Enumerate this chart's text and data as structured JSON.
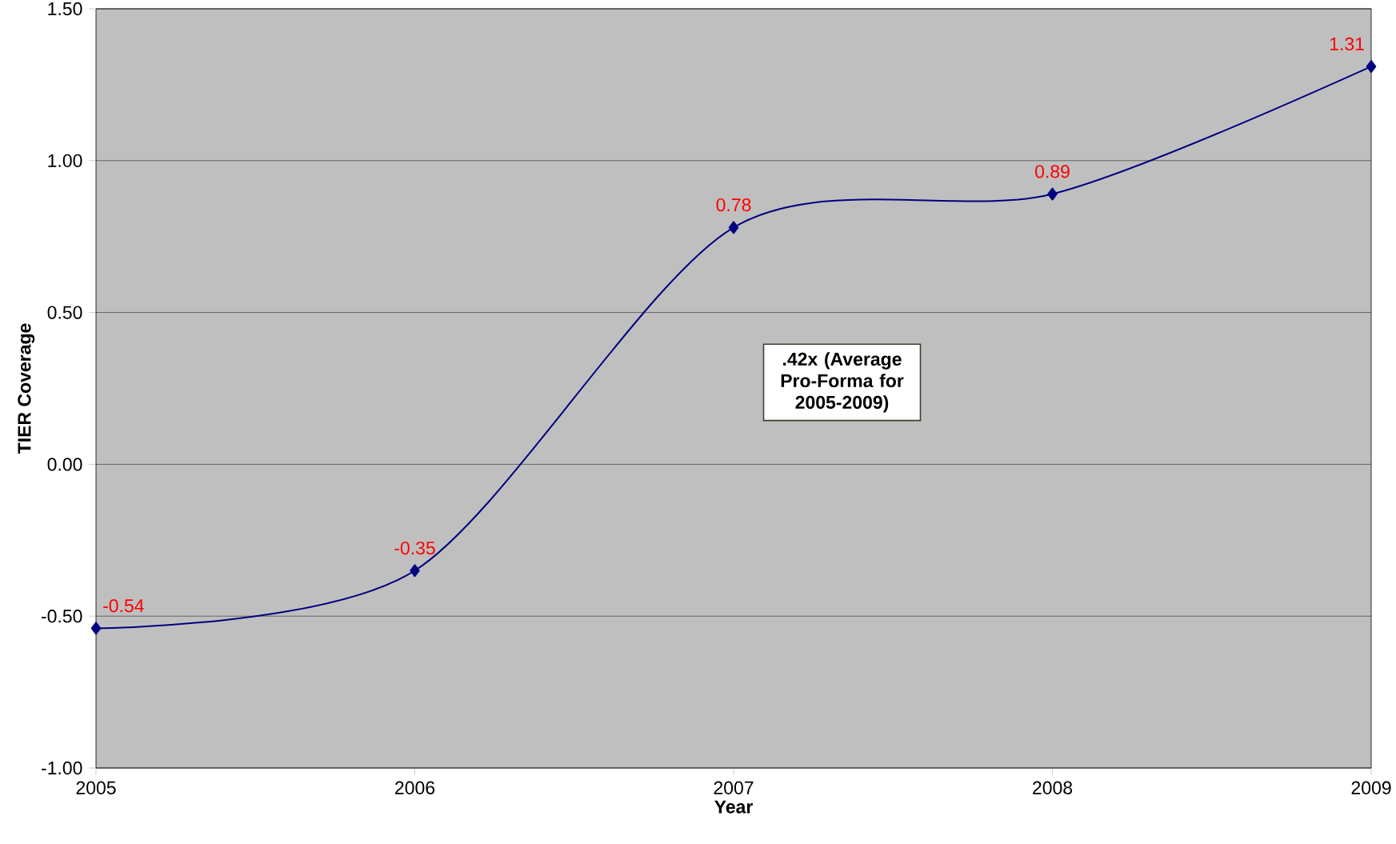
{
  "chart_data": {
    "type": "line",
    "xlabel": "Year",
    "ylabel": "TIER Coverage",
    "x": [
      2005,
      2006,
      2007,
      2008,
      2009
    ],
    "values": [
      -0.54,
      -0.35,
      0.78,
      0.89,
      1.31
    ],
    "color": "#000080",
    "marker": "diamond",
    "line_style": "solid",
    "data_labels": true,
    "grid": "y",
    "xlim": [
      2005,
      2009
    ],
    "xticks": [
      2005,
      2006,
      2007,
      2008,
      2009
    ],
    "ylim": [
      -1,
      1.5
    ],
    "yticks": [
      {
        "value": -1,
        "label": "-1.00"
      },
      {
        "value": -0.5,
        "label": "-0.50"
      },
      {
        "value": 0,
        "label": "0.00"
      },
      {
        "value": 0.5,
        "label": "0.50"
      },
      {
        "value": 1,
        "label": "1.00"
      },
      {
        "value": 1.5,
        "label": "1.50"
      }
    ],
    "annotations": [
      ".42x (Average Pro-Forma for 2005-2009)"
    ]
  }
}
